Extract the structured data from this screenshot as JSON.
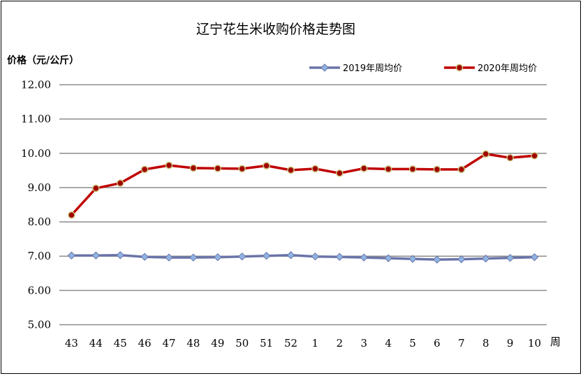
{
  "chart_data": {
    "type": "line",
    "title": "辽宁花生米收购价格走势图",
    "ylabel": "价格（元/公斤）",
    "xlabel": "周",
    "ylim": [
      5,
      12
    ],
    "yticks": [
      "5.00",
      "6.00",
      "7.00",
      "8.00",
      "9.00",
      "10.00",
      "11.00",
      "12.00"
    ],
    "categories": [
      "43",
      "44",
      "45",
      "46",
      "47",
      "48",
      "49",
      "50",
      "51",
      "52",
      "1",
      "2",
      "3",
      "4",
      "5",
      "6",
      "7",
      "8",
      "9",
      "10"
    ],
    "grid": true,
    "legend_position": "top-right",
    "series": [
      {
        "name": "2019年周均价",
        "color": "#6a74a8",
        "marker_color": "#8fb4e3",
        "values": [
          7.02,
          7.02,
          7.03,
          6.98,
          6.96,
          6.96,
          6.97,
          6.99,
          7.01,
          7.03,
          6.99,
          6.98,
          6.96,
          6.94,
          6.92,
          6.9,
          6.91,
          6.93,
          6.95,
          6.97
        ]
      },
      {
        "name": "2020年周均价",
        "color": "#c00000",
        "marker_color": "#a00000",
        "marker_edge": "#c8c37a",
        "values": [
          8.2,
          8.98,
          9.13,
          9.53,
          9.65,
          9.57,
          9.56,
          9.55,
          9.64,
          9.51,
          9.55,
          9.42,
          9.56,
          9.54,
          9.54,
          9.53,
          9.53,
          9.98,
          9.87,
          9.93
        ]
      }
    ]
  }
}
